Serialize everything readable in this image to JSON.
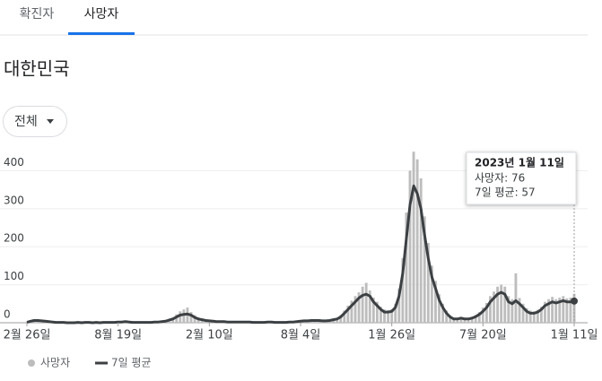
{
  "tabs": [
    "확진자",
    "사망자"
  ],
  "active_tab": 1,
  "region": "대한민국",
  "filter": "전체",
  "chart_data": {
    "type": "bar-line",
    "categories": [
      "2월 26일",
      null,
      null,
      null,
      null,
      null,
      null,
      null,
      null,
      null,
      null,
      null,
      null,
      null,
      null,
      null,
      null,
      null,
      null,
      null,
      null,
      null,
      null,
      null,
      null,
      "8월 19일",
      null,
      null,
      null,
      null,
      null,
      null,
      null,
      null,
      null,
      null,
      null,
      null,
      null,
      null,
      null,
      null,
      null,
      null,
      null,
      null,
      null,
      null,
      null,
      null,
      "2월 10일",
      null,
      null,
      null,
      null,
      null,
      null,
      null,
      null,
      null,
      null,
      null,
      null,
      null,
      null,
      null,
      null,
      null,
      null,
      null,
      null,
      null,
      null,
      null,
      null,
      "8월 4일",
      null,
      null,
      null,
      null,
      null,
      null,
      null,
      null,
      null,
      null,
      null,
      null,
      null,
      null,
      null,
      null,
      null,
      null,
      null,
      null,
      null,
      null,
      null,
      null,
      "1월 26일",
      null,
      null,
      null,
      null,
      null,
      null,
      null,
      null,
      null,
      null,
      null,
      null,
      null,
      null,
      null,
      null,
      null,
      null,
      null,
      null,
      null,
      null,
      null,
      null,
      "7월 20일",
      null,
      null,
      null,
      null,
      null,
      null,
      null,
      null,
      null,
      null,
      null,
      null,
      null,
      null,
      null,
      null,
      null,
      null,
      null,
      null,
      null,
      null,
      null,
      null,
      "1월 11일"
    ],
    "series": [
      {
        "name": "사망자",
        "color": "#bdbdbd",
        "values": [
          2,
          6,
          9,
          8,
          6,
          5,
          4,
          3,
          2,
          1,
          2,
          1,
          0,
          1,
          2,
          0,
          1,
          2,
          0,
          1,
          1,
          2,
          1,
          2,
          2,
          3,
          3,
          4,
          3,
          2,
          2,
          1,
          2,
          1,
          2,
          3,
          3,
          4,
          6,
          10,
          14,
          22,
          30,
          35,
          40,
          28,
          20,
          14,
          10,
          8,
          7,
          5,
          4,
          4,
          4,
          3,
          3,
          3,
          3,
          2,
          3,
          2,
          2,
          1,
          2,
          2,
          3,
          3,
          2,
          2,
          2,
          2,
          3,
          3,
          4,
          5,
          6,
          6,
          7,
          8,
          8,
          7,
          6,
          8,
          10,
          13,
          20,
          32,
          45,
          58,
          70,
          80,
          95,
          105,
          85,
          66,
          55,
          42,
          35,
          33,
          36,
          50,
          90,
          170,
          290,
          400,
          450,
          430,
          380,
          280,
          210,
          150,
          110,
          75,
          50,
          32,
          20,
          13,
          12,
          14,
          12,
          12,
          15,
          20,
          28,
          40,
          52,
          70,
          82,
          95,
          100,
          95,
          70,
          62,
          130,
          65,
          50,
          38,
          32,
          30,
          34,
          42,
          55,
          62,
          68,
          62,
          66,
          70,
          64,
          66,
          76
        ]
      },
      {
        "name": "7일 평균",
        "color": "#3c4043",
        "values": [
          1,
          4,
          6,
          6,
          5,
          4,
          3,
          2,
          1,
          1,
          1,
          0,
          0,
          0,
          1,
          0,
          1,
          1,
          0,
          1,
          0,
          1,
          1,
          1,
          1,
          2,
          2,
          3,
          2,
          1,
          1,
          1,
          1,
          1,
          1,
          2,
          2,
          3,
          4,
          7,
          10,
          15,
          20,
          22,
          23,
          20,
          14,
          10,
          8,
          6,
          5,
          4,
          3,
          3,
          3,
          2,
          2,
          2,
          2,
          2,
          2,
          2,
          1,
          1,
          1,
          1,
          2,
          2,
          1,
          1,
          1,
          1,
          2,
          2,
          3,
          4,
          5,
          5,
          6,
          6,
          6,
          5,
          5,
          6,
          8,
          10,
          15,
          25,
          35,
          45,
          55,
          65,
          72,
          75,
          70,
          55,
          45,
          35,
          28,
          28,
          30,
          40,
          70,
          130,
          220,
          310,
          360,
          340,
          300,
          230,
          170,
          120,
          90,
          60,
          40,
          25,
          15,
          10,
          10,
          12,
          10,
          10,
          12,
          16,
          22,
          30,
          40,
          55,
          65,
          75,
          80,
          75,
          55,
          50,
          58,
          50,
          40,
          30,
          25,
          25,
          28,
          35,
          45,
          50,
          55,
          52,
          55,
          58,
          55,
          55,
          57
        ]
      }
    ],
    "ylim": [
      0,
      460
    ],
    "yticks": [
      0,
      100,
      200,
      300,
      400
    ],
    "grid": true,
    "tooltip": {
      "title": "2023년 1월 11일",
      "lines": [
        "사망자: 76",
        "7일 평균: 57"
      ]
    }
  }
}
